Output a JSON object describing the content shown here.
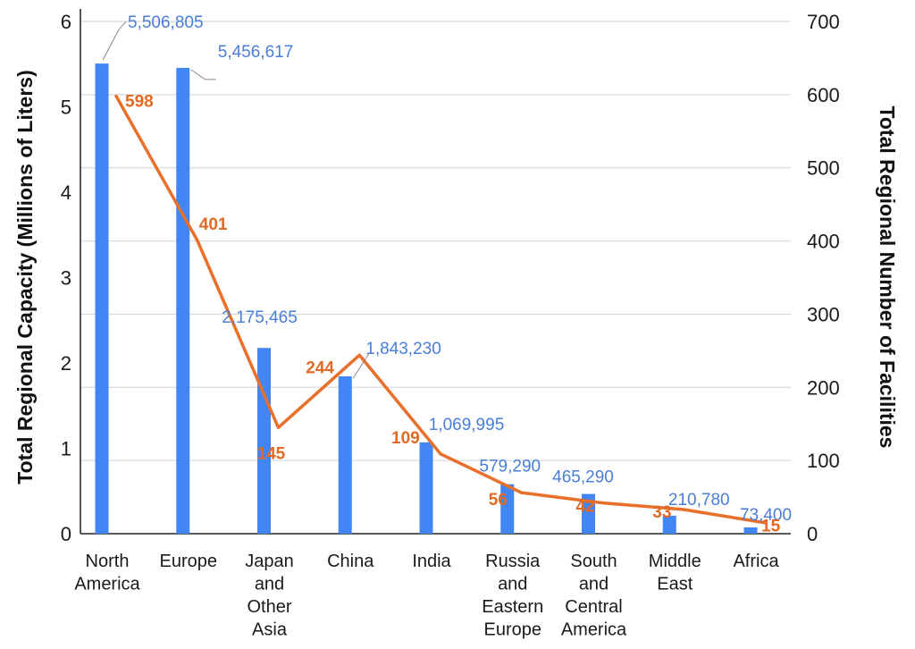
{
  "chart_data": {
    "type": "bar",
    "title": "",
    "categories": [
      [
        "North",
        "America"
      ],
      [
        "Europe"
      ],
      [
        "Japan",
        "and",
        "Other",
        "Asia"
      ],
      [
        "China"
      ],
      [
        "India"
      ],
      [
        "Russia",
        "and",
        "Eastern",
        "Europe"
      ],
      [
        "South",
        "and",
        "Central",
        "America"
      ],
      [
        "Middle",
        "East"
      ],
      [
        "Africa"
      ]
    ],
    "series": [
      {
        "name": "Total Regional Capacity",
        "type": "bar",
        "axis": "left",
        "color": "#4285f4",
        "values": [
          5506805,
          5456617,
          2175465,
          1843230,
          1069995,
          579290,
          465290,
          210780,
          73400
        ],
        "labels": [
          "5,506,805",
          "5,456,617",
          "2,175,465",
          "1,843,230",
          "1,069,995",
          "579,290",
          "465,290",
          "210,780",
          "73,400"
        ]
      },
      {
        "name": "Total Regional Number of Facilities",
        "type": "line",
        "axis": "right",
        "color": "#e8702a",
        "values": [
          598,
          401,
          145,
          244,
          109,
          56,
          42,
          33,
          15
        ],
        "labels": [
          "598",
          "401",
          "145",
          "244",
          "109",
          "56",
          "42",
          "33",
          "15"
        ]
      }
    ],
    "y_left": {
      "label": "Total Regional Capacity (Millions of Liters)",
      "range": [
        0,
        6
      ],
      "ticks": [
        "0",
        "1",
        "2",
        "3",
        "4",
        "5",
        "6"
      ]
    },
    "y_right": {
      "label": "Total Regional Number of Facilities",
      "range": [
        0,
        700
      ],
      "ticks": [
        "0",
        "100",
        "200",
        "300",
        "400",
        "500",
        "600",
        "700"
      ]
    },
    "grid": true,
    "legend": "none"
  }
}
